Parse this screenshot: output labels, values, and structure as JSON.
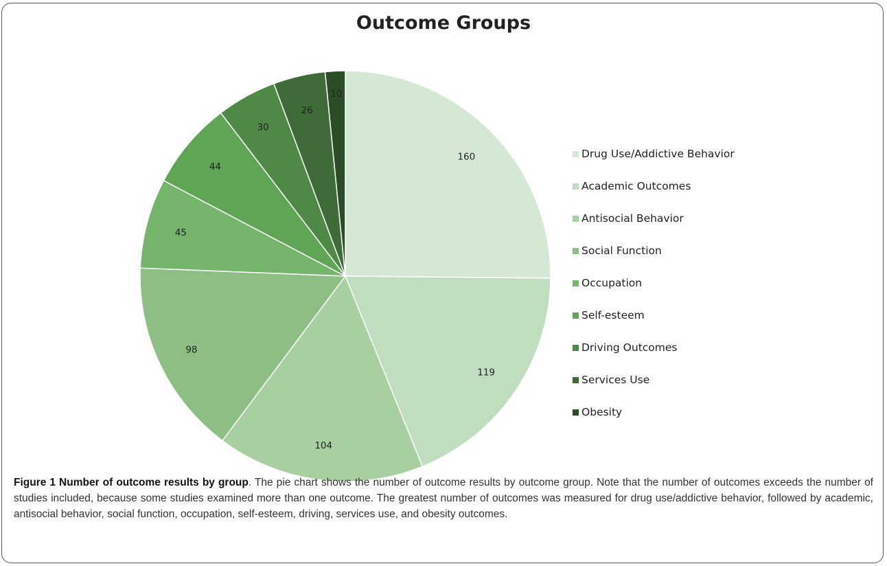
{
  "chart_data": {
    "type": "pie",
    "title": "Outcome Groups",
    "categories": [
      "Drug Use/Addictive Behavior",
      "Academic Outcomes",
      "Antisocial Behavior",
      "Social Function",
      "Occupation",
      "Self-esteem",
      "Driving Outcomes",
      "Services Use",
      "Obesity"
    ],
    "values": [
      160,
      119,
      104,
      98,
      45,
      44,
      30,
      26,
      10
    ],
    "data_labels": [
      "160",
      "119",
      "104",
      "98",
      "45",
      "44",
      "30",
      "26",
      "10"
    ],
    "colors": [
      "#d5e8d4",
      "#c1ddbf",
      "#a8cf9f",
      "#8dbf85",
      "#75b46b",
      "#5fa555",
      "#4e8a46",
      "#3e6b38",
      "#2c4c28"
    ],
    "legend_position": "right",
    "start_angle": "top, clockwise"
  },
  "caption": {
    "title": "Figure 1 Number of outcome results by group",
    "text": ". The pie chart shows the number of outcome results by outcome group. Note that the number of outcomes exceeds the number of studies included, because some studies examined more than one outcome. The greatest number of outcomes was measured for drug use/addictive behavior, followed by academic, antisocial behavior, social function, occupation, self-esteem, driving, services use, and obesity outcomes."
  }
}
